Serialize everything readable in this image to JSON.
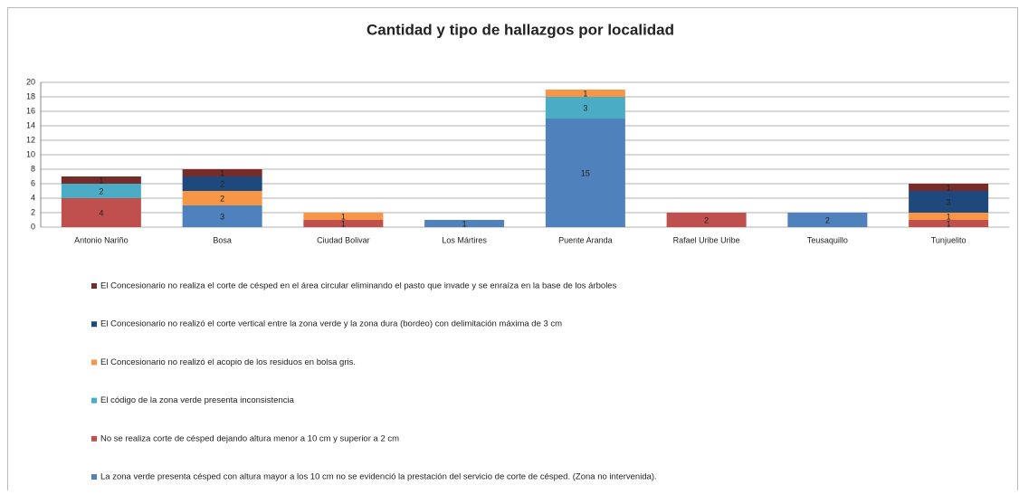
{
  "chart_data": {
    "type": "stacked_bar",
    "title": "Cantidad y tipo de hallazgos por localidad",
    "categories": [
      "Antonio Nariño",
      "Bosa",
      "Ciudad Bolivar",
      "Los Mártires",
      "Puente Aranda",
      "Rafael Uribe Uribe",
      "Teusaquillo",
      "Tunjuelito"
    ],
    "series": [
      {
        "name": "La zona verde presenta césped con altura mayor a los 10 cm no se evidenció la prestación del servicio de corte de césped. (Zona no intervenida).",
        "color": "#4f81bd",
        "values": [
          null,
          3,
          null,
          1,
          15,
          null,
          2,
          null
        ]
      },
      {
        "name": "No se realiza corte de césped dejando altura menor a 10 cm y superior a 2 cm",
        "color": "#c0504d",
        "values": [
          4,
          null,
          1,
          null,
          null,
          2,
          null,
          1
        ]
      },
      {
        "name": "El código de la zona verde presenta inconsistencia",
        "color": "#4bacc6",
        "values": [
          2,
          null,
          null,
          null,
          3,
          null,
          null,
          null
        ]
      },
      {
        "name": "El Concesionario no realizó el acopio de los residuos en bolsa gris.",
        "color": "#f79646",
        "values": [
          null,
          2,
          1,
          null,
          1,
          null,
          null,
          1
        ]
      },
      {
        "name": "El Concesionario no realizó el corte vertical entre la zona verde y la zona dura (bordeo) con delimitación máxima de 3 cm",
        "color": "#1f497d",
        "values": [
          null,
          2,
          null,
          null,
          null,
          null,
          null,
          3
        ]
      },
      {
        "name": "El Concesionario no  realiza el corte de césped en el área circular eliminando el pasto que invade y se enraíza en la base de los árboles",
        "color": "#772c2a",
        "values": [
          1,
          1,
          null,
          null,
          null,
          null,
          null,
          1
        ]
      }
    ],
    "ylim": [
      0,
      20
    ],
    "yticks": [
      0,
      2,
      4,
      6,
      8,
      10,
      12,
      14,
      16,
      18,
      20
    ],
    "grid": true
  }
}
